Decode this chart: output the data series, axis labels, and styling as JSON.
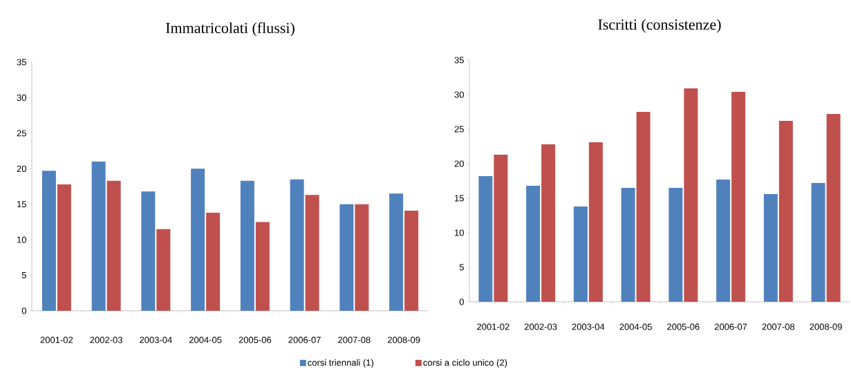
{
  "chart_data": [
    {
      "type": "bar",
      "title": "Immatricolati (flussi)",
      "categories": [
        "2001-02",
        "2002-03",
        "2003-04",
        "2004-05",
        "2005-06",
        "2006-07",
        "2007-08",
        "2008-09"
      ],
      "series": [
        {
          "name": "corsi triennali (1)",
          "color": "#4f81bd",
          "values": [
            19.7,
            21.0,
            16.8,
            20.0,
            18.3,
            18.5,
            15.0,
            16.5
          ]
        },
        {
          "name": "corsi a ciclo unico (2)",
          "color": "#c0504d",
          "values": [
            17.8,
            18.3,
            11.5,
            13.8,
            12.5,
            16.3,
            15.0,
            14.1
          ]
        }
      ],
      "ylim": [
        0,
        35
      ],
      "yticks": [
        0,
        5,
        10,
        15,
        20,
        25,
        30,
        35
      ],
      "grid": false,
      "legend": "bottom"
    },
    {
      "type": "bar",
      "title": "Iscritti (consistenze)",
      "categories": [
        "2001-02",
        "2002-03",
        "2003-04",
        "2004-05",
        "2005-06",
        "2006-07",
        "2007-08",
        "2008-09"
      ],
      "series": [
        {
          "color": "#4f81bd",
          "values": [
            18.2,
            16.8,
            13.8,
            16.5,
            16.5,
            17.7,
            15.6,
            17.2
          ]
        },
        {
          "color": "#c0504d",
          "values": [
            21.3,
            22.8,
            23.1,
            27.5,
            30.9,
            30.4,
            26.2,
            27.2
          ]
        }
      ],
      "ylim": [
        0,
        35
      ],
      "yticks": [
        0,
        5,
        10,
        15,
        20,
        25,
        30,
        35
      ],
      "grid": false
    }
  ]
}
